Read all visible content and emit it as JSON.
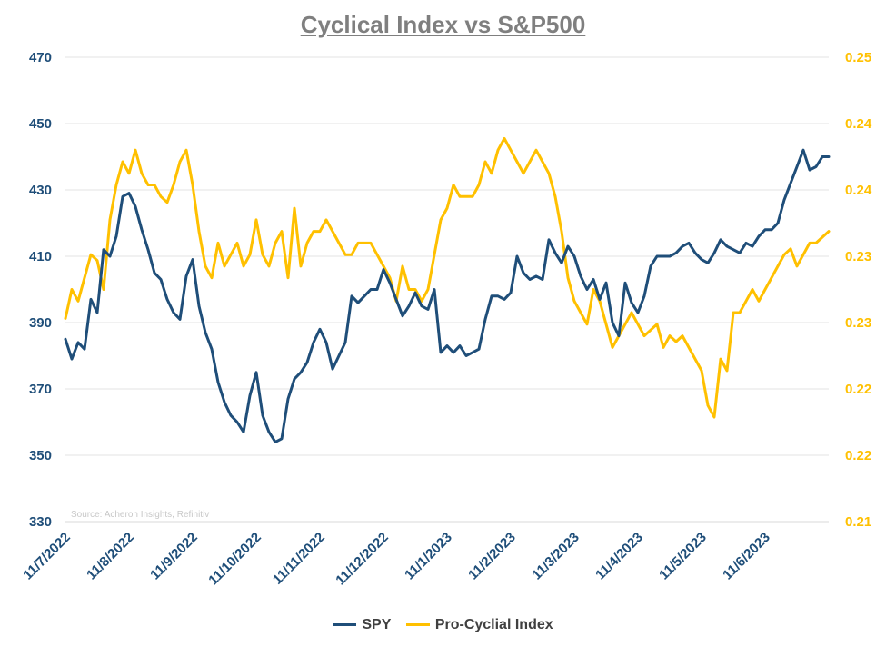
{
  "chart_data": {
    "type": "line",
    "title": "Cyclical Index vs S&P500",
    "source": "Source: Acheron Insights, Refinitiv",
    "x_tick_labels": [
      "11/7/2022",
      "11/8/2022",
      "11/9/2022",
      "11/10/2022",
      "11/11/2022",
      "11/12/2022",
      "11/1/2023",
      "11/2/2023",
      "11/3/2023",
      "11/4/2023",
      "11/5/2023",
      "11/6/2023"
    ],
    "left_axis": {
      "ylim": [
        330,
        470
      ],
      "ticks": [
        "330",
        "350",
        "370",
        "390",
        "410",
        "430",
        "450",
        "470"
      ]
    },
    "right_axis": {
      "ylim": [
        0.21,
        0.25
      ],
      "ticks": [
        "0.21",
        "0.22",
        "0.22",
        "0.23",
        "0.23",
        "0.24",
        "0.24",
        "0.25"
      ]
    },
    "grid": true,
    "legend_position": "bottom",
    "x_range": [
      0,
      12
    ],
    "series": [
      {
        "name": "SPY",
        "axis": "left",
        "color": "#1f4e79",
        "x": [
          0,
          0.1,
          0.2,
          0.3,
          0.4,
          0.5,
          0.6,
          0.7,
          0.8,
          0.9,
          1.0,
          1.1,
          1.2,
          1.3,
          1.4,
          1.5,
          1.6,
          1.7,
          1.8,
          1.9,
          2.0,
          2.1,
          2.2,
          2.3,
          2.4,
          2.5,
          2.6,
          2.7,
          2.8,
          2.9,
          3.0,
          3.1,
          3.2,
          3.3,
          3.4,
          3.5,
          3.6,
          3.7,
          3.8,
          3.9,
          4.0,
          4.1,
          4.2,
          4.3,
          4.4,
          4.5,
          4.6,
          4.7,
          4.8,
          4.9,
          5.0,
          5.1,
          5.2,
          5.3,
          5.4,
          5.5,
          5.6,
          5.7,
          5.8,
          5.9,
          6.0,
          6.1,
          6.2,
          6.3,
          6.4,
          6.5,
          6.6,
          6.7,
          6.8,
          6.9,
          7.0,
          7.1,
          7.2,
          7.3,
          7.4,
          7.5,
          7.6,
          7.7,
          7.8,
          7.9,
          8.0,
          8.1,
          8.2,
          8.3,
          8.4,
          8.5,
          8.6,
          8.7,
          8.8,
          8.9,
          9.0,
          9.1,
          9.2,
          9.3,
          9.4,
          9.5,
          9.6,
          9.7,
          9.8,
          9.9,
          10.0,
          10.1,
          10.2,
          10.3,
          10.4,
          10.5,
          10.6,
          10.7,
          10.8,
          10.9,
          11.0,
          11.1,
          11.2,
          11.3,
          11.4,
          11.5,
          11.6,
          11.7,
          11.8,
          11.9,
          12.0
        ],
        "values": [
          385,
          379,
          384,
          382,
          397,
          393,
          412,
          410,
          416,
          428,
          429,
          425,
          418,
          412,
          405,
          403,
          397,
          393,
          391,
          404,
          409,
          395,
          387,
          382,
          372,
          366,
          362,
          360,
          357,
          368,
          375,
          362,
          357,
          354,
          355,
          367,
          373,
          375,
          378,
          384,
          388,
          384,
          376,
          380,
          384,
          398,
          396,
          398,
          400,
          400,
          406,
          402,
          397,
          392,
          395,
          399,
          395,
          394,
          400,
          381,
          383,
          381,
          383,
          380,
          381,
          382,
          391,
          398,
          398,
          397,
          399,
          410,
          405,
          403,
          404,
          403,
          415,
          411,
          408,
          413,
          410,
          404,
          400,
          403,
          397,
          402,
          390,
          386,
          402,
          396,
          393,
          398,
          407,
          410,
          410,
          410,
          411,
          413,
          414,
          411,
          409,
          408,
          411,
          415,
          413,
          412,
          411,
          414,
          413,
          416,
          418,
          418,
          420,
          427,
          432,
          437,
          442,
          436,
          437,
          440,
          440
        ]
      },
      {
        "name": "Pro-Cyclial Index",
        "axis": "right",
        "color": "#ffc000",
        "x": [
          0,
          0.1,
          0.2,
          0.3,
          0.4,
          0.5,
          0.6,
          0.7,
          0.8,
          0.9,
          1.0,
          1.1,
          1.2,
          1.3,
          1.4,
          1.5,
          1.6,
          1.7,
          1.8,
          1.9,
          2.0,
          2.1,
          2.2,
          2.3,
          2.4,
          2.5,
          2.6,
          2.7,
          2.8,
          2.9,
          3.0,
          3.1,
          3.2,
          3.3,
          3.4,
          3.5,
          3.6,
          3.7,
          3.8,
          3.9,
          4.0,
          4.1,
          4.2,
          4.3,
          4.4,
          4.5,
          4.6,
          4.7,
          4.8,
          4.9,
          5.0,
          5.1,
          5.2,
          5.3,
          5.4,
          5.5,
          5.6,
          5.7,
          5.8,
          5.9,
          6.0,
          6.1,
          6.2,
          6.3,
          6.4,
          6.5,
          6.6,
          6.7,
          6.8,
          6.9,
          7.0,
          7.1,
          7.2,
          7.3,
          7.4,
          7.5,
          7.6,
          7.7,
          7.8,
          7.9,
          8.0,
          8.1,
          8.2,
          8.3,
          8.4,
          8.5,
          8.6,
          8.7,
          8.8,
          8.9,
          9.0,
          9.1,
          9.2,
          9.3,
          9.4,
          9.5,
          9.6,
          9.7,
          9.8,
          9.9,
          10.0,
          10.1,
          10.2,
          10.3,
          10.4,
          10.5,
          10.6,
          10.7,
          10.8,
          10.9,
          11.0,
          11.1,
          11.2,
          11.3,
          11.4,
          11.5,
          11.6,
          11.7,
          11.8,
          11.9,
          12.0
        ],
        "values": [
          0.2275,
          0.23,
          0.229,
          0.231,
          0.233,
          0.2325,
          0.23,
          0.236,
          0.239,
          0.241,
          0.24,
          0.242,
          0.24,
          0.239,
          0.239,
          0.238,
          0.2375,
          0.239,
          0.241,
          0.242,
          0.239,
          0.235,
          0.232,
          0.231,
          0.234,
          0.232,
          0.233,
          0.234,
          0.232,
          0.233,
          0.236,
          0.233,
          0.232,
          0.234,
          0.235,
          0.231,
          0.237,
          0.232,
          0.234,
          0.235,
          0.235,
          0.236,
          0.235,
          0.234,
          0.233,
          0.233,
          0.234,
          0.234,
          0.234,
          0.233,
          0.232,
          0.231,
          0.229,
          0.232,
          0.23,
          0.23,
          0.229,
          0.23,
          0.233,
          0.236,
          0.237,
          0.239,
          0.238,
          0.238,
          0.238,
          0.239,
          0.241,
          0.24,
          0.242,
          0.243,
          0.242,
          0.241,
          0.24,
          0.241,
          0.242,
          0.241,
          0.24,
          0.238,
          0.235,
          0.231,
          0.229,
          0.228,
          0.227,
          0.23,
          0.229,
          0.227,
          0.225,
          0.226,
          0.227,
          0.228,
          0.227,
          0.226,
          0.2265,
          0.227,
          0.225,
          0.226,
          0.2255,
          0.226,
          0.225,
          0.224,
          0.223,
          0.22,
          0.219,
          0.224,
          0.223,
          0.228,
          0.228,
          0.229,
          0.23,
          0.229,
          0.23,
          0.231,
          0.232,
          0.233,
          0.2335,
          0.232,
          0.233,
          0.234,
          0.234,
          0.2345,
          0.235
        ]
      }
    ]
  }
}
